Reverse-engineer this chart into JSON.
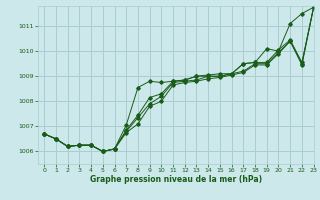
{
  "background_color": "#cce8ea",
  "grid_color": "#aacdd0",
  "line_color": "#1a5c1a",
  "text_color": "#1a5c1a",
  "xlabel": "Graphe pression niveau de la mer (hPa)",
  "xlim": [
    -0.5,
    23
  ],
  "ylim": [
    1005.5,
    1011.8
  ],
  "yticks": [
    1006,
    1007,
    1008,
    1009,
    1010,
    1011
  ],
  "xticks": [
    0,
    1,
    2,
    3,
    4,
    5,
    6,
    7,
    8,
    9,
    10,
    11,
    12,
    13,
    14,
    15,
    16,
    17,
    18,
    19,
    20,
    21,
    22,
    23
  ],
  "series": [
    [
      1006.7,
      1006.5,
      1006.2,
      1006.25,
      1006.25,
      1006.0,
      1006.1,
      1007.05,
      1008.55,
      1008.8,
      1008.75,
      1008.8,
      1008.85,
      1009.0,
      1009.0,
      1009.0,
      1009.1,
      1009.5,
      1009.55,
      1010.1,
      1010.0,
      1011.1,
      1011.5,
      1011.75
    ],
    [
      1006.7,
      1006.5,
      1006.2,
      1006.25,
      1006.25,
      1006.0,
      1006.1,
      1006.85,
      1007.45,
      1008.15,
      1008.3,
      1008.8,
      1008.85,
      1009.0,
      1009.05,
      1009.1,
      1009.1,
      1009.5,
      1009.55,
      1009.55,
      1010.05,
      1010.45,
      1009.55,
      1011.75
    ],
    [
      1006.7,
      1006.5,
      1006.2,
      1006.25,
      1006.25,
      1006.0,
      1006.1,
      1006.8,
      1007.35,
      1007.9,
      1008.2,
      1008.75,
      1008.8,
      1008.85,
      1009.0,
      1009.0,
      1009.1,
      1009.2,
      1009.5,
      1009.5,
      1009.95,
      1010.4,
      1009.5,
      1011.75
    ],
    [
      1006.7,
      1006.5,
      1006.2,
      1006.25,
      1006.25,
      1006.0,
      1006.1,
      1006.75,
      1007.1,
      1007.8,
      1008.0,
      1008.65,
      1008.75,
      1008.8,
      1008.9,
      1008.95,
      1009.05,
      1009.15,
      1009.45,
      1009.45,
      1009.9,
      1010.4,
      1009.45,
      1011.75
    ]
  ]
}
